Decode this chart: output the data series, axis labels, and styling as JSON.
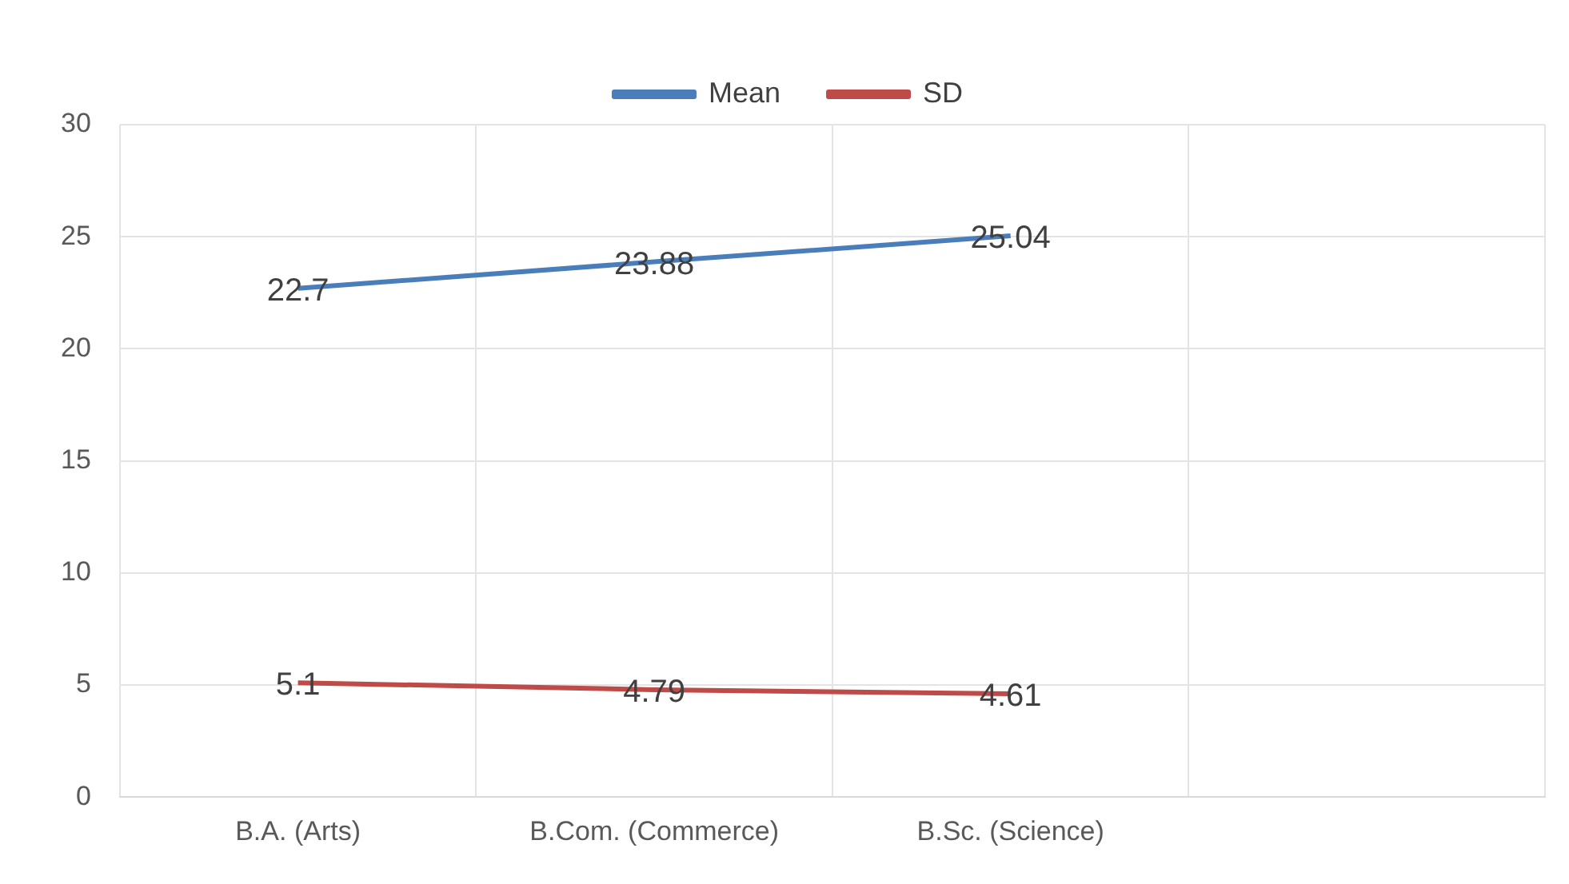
{
  "chart_data": {
    "type": "line",
    "categories": [
      "B.A. (Arts)",
      "B.Com. (Commerce)",
      "B.Sc. (Science)",
      null
    ],
    "series": [
      {
        "name": "Mean",
        "color": "#4a7ebb",
        "values": [
          22.7,
          23.88,
          25.04,
          null
        ]
      },
      {
        "name": "SD",
        "color": "#be4b48",
        "values": [
          5.1,
          4.79,
          4.61,
          null
        ]
      }
    ],
    "ylim": [
      0,
      30
    ],
    "yticks": [
      0,
      5,
      10,
      15,
      20,
      25,
      30
    ],
    "grid": true,
    "legend": "top",
    "marker": "none",
    "data_labels": true
  }
}
